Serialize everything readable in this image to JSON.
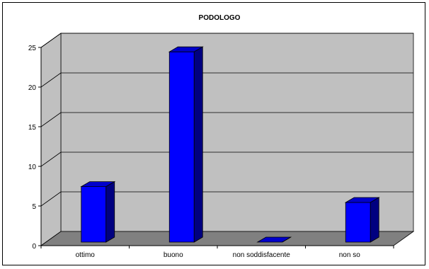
{
  "chart_data": {
    "type": "bar",
    "title": "PODOLOGO",
    "categories": [
      "ottimo",
      "buono",
      "non soddisfacente",
      "non so"
    ],
    "values": [
      7,
      24,
      0,
      5
    ],
    "ylim": [
      0,
      25
    ],
    "yticks": [
      0,
      5,
      10,
      15,
      20,
      25
    ],
    "xlabel": "",
    "ylabel": "",
    "grid": true,
    "colors": {
      "bar_front": "#0000ff",
      "bar_top": "#0000cc",
      "bar_side": "#000080",
      "wall": "#c0c0c0",
      "floor": "#808080"
    }
  }
}
